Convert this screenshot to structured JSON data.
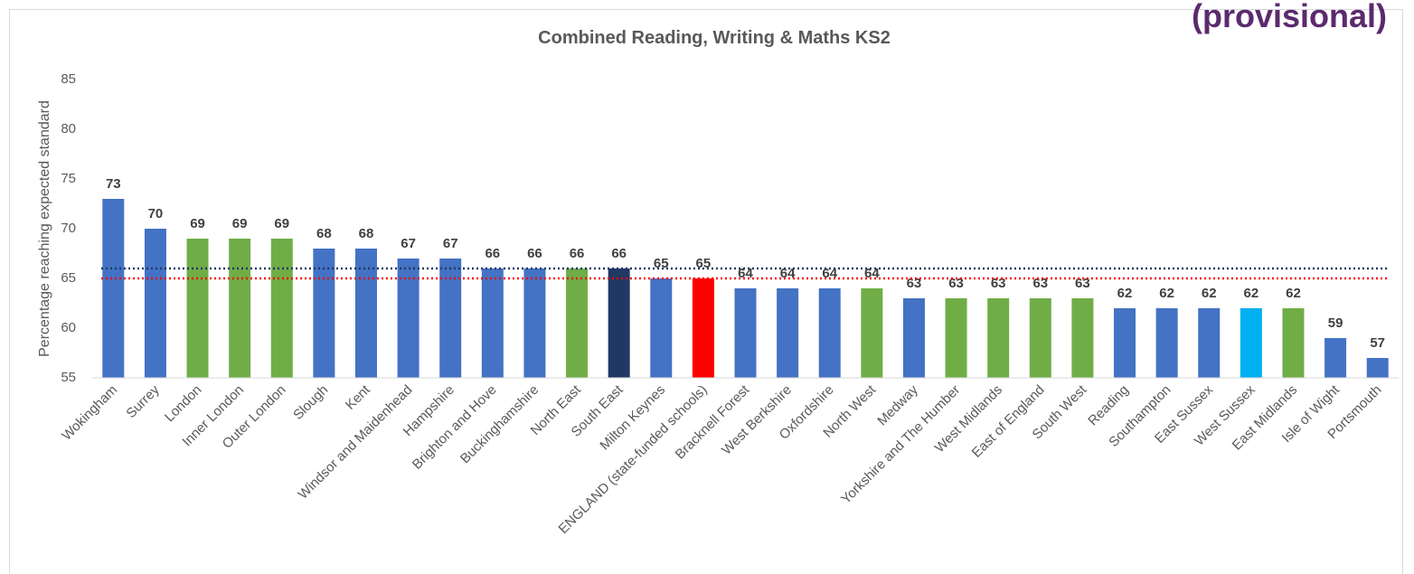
{
  "chart_data": {
    "type": "bar",
    "title": "Combined Reading, Writing & Maths KS2",
    "corner_note": "(provisional)",
    "y_label": "Percentage reaching expected standard",
    "categories": [
      "Wokingham",
      "Surrey",
      "London",
      "Inner London",
      "Outer London",
      "Slough",
      "Kent",
      "Windsor and Maidenhead",
      "Hampshire",
      "Brighton and Hove",
      "Buckinghamshire",
      "North East",
      "South East",
      "Milton Keynes",
      "ENGLAND (state-funded schools)",
      "Bracknell Forest",
      "West Berkshire",
      "Oxfordshire",
      "North West",
      "Medway",
      "Yorkshire and The Humber",
      "West Midlands",
      "East of England",
      "South West",
      "Reading",
      "Southampton",
      "East Sussex",
      "West Sussex",
      "East Midlands",
      "Isle of Wight",
      "Portsmouth"
    ],
    "values": [
      73,
      70,
      69,
      69,
      69,
      68,
      68,
      67,
      67,
      66,
      66,
      66,
      66,
      65,
      65,
      64,
      64,
      64,
      64,
      63,
      63,
      63,
      63,
      63,
      62,
      62,
      62,
      62,
      62,
      59,
      57
    ],
    "colors": [
      "#4472c4",
      "#4472c4",
      "#70ad47",
      "#70ad47",
      "#70ad47",
      "#4472c4",
      "#4472c4",
      "#4472c4",
      "#4472c4",
      "#4472c4",
      "#4472c4",
      "#70ad47",
      "#203864",
      "#4472c4",
      "#ff0000",
      "#4472c4",
      "#4472c4",
      "#4472c4",
      "#70ad47",
      "#4472c4",
      "#70ad47",
      "#70ad47",
      "#70ad47",
      "#70ad47",
      "#4472c4",
      "#4472c4",
      "#4472c4",
      "#00b0f0",
      "#70ad47",
      "#4472c4",
      "#4472c4"
    ],
    "reference_lines": [
      {
        "value": 66,
        "color": "#203864"
      },
      {
        "value": 65,
        "color": "#ff0000"
      }
    ],
    "ylim": [
      55,
      85
    ],
    "yticks": [
      55,
      60,
      65,
      70,
      75,
      80,
      85
    ],
    "grid": false
  }
}
